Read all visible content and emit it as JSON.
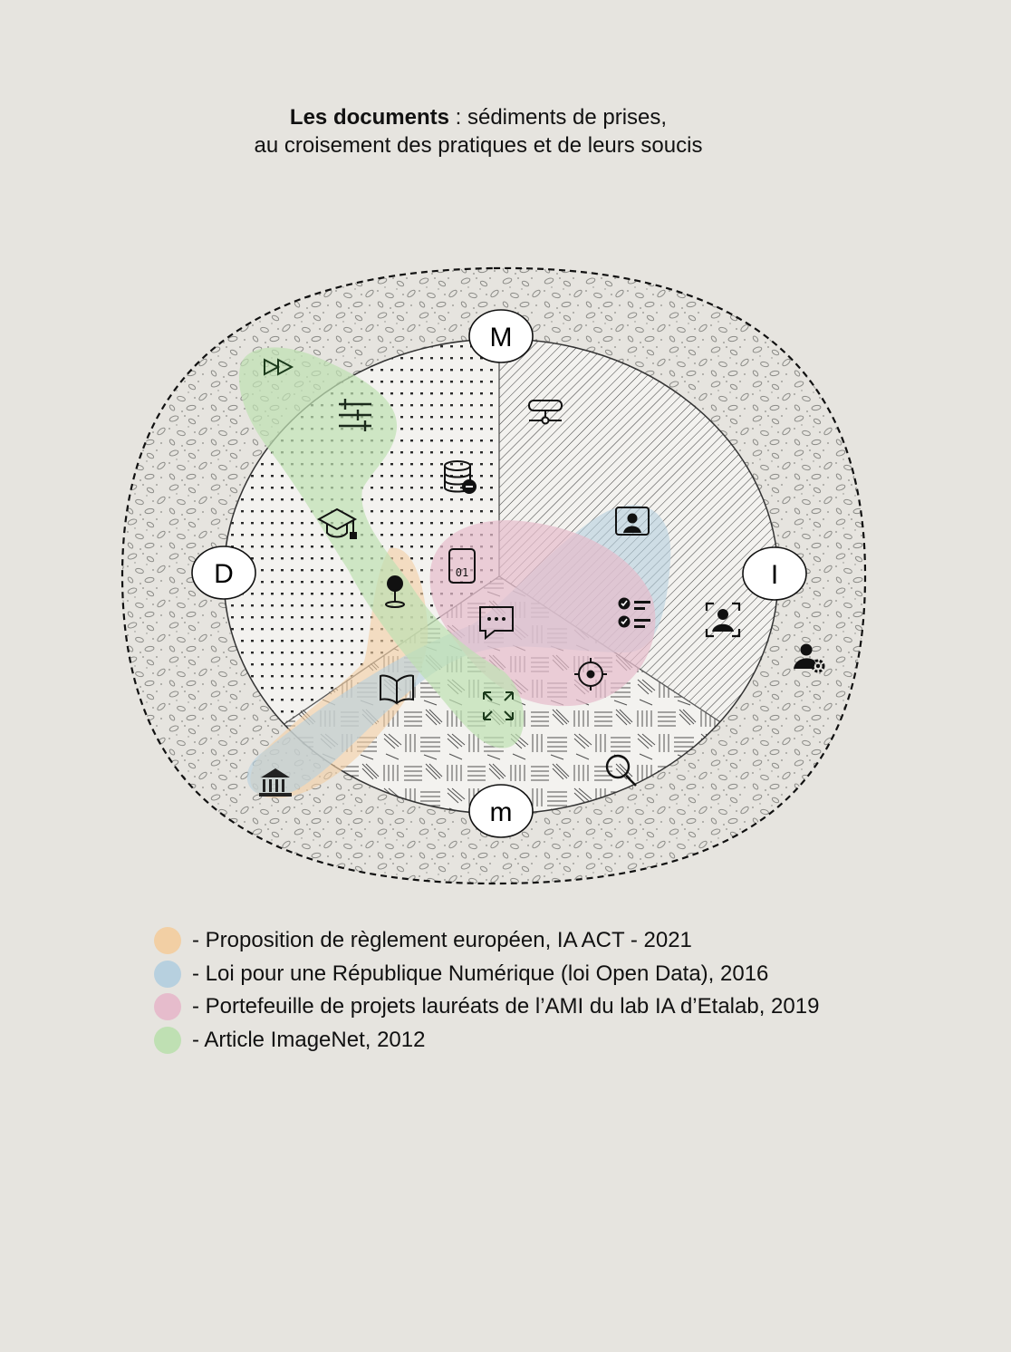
{
  "title": {
    "bold": "Les documents",
    "rest": " : sédiments de prises,",
    "line2": "au croisement des pratiques et de leurs soucis"
  },
  "axes": {
    "top": "M",
    "left": "D",
    "right": "I",
    "bottom": "m"
  },
  "legend": [
    {
      "label": "- Proposition de règlement européen, IA ACT - 2021",
      "color": "#f2cfa4"
    },
    {
      "label": "- Loi pour une République Numérique (loi Open Data), 2016",
      "color": "#b7d0df"
    },
    {
      "label": "- Portefeuille de projets lauréats de l’AMI du lab IA d’Etalab, 2019",
      "color": "#e6bccc"
    },
    {
      "label": "- Article ImageNet, 2012",
      "color": "#bfe0b3"
    }
  ],
  "icons": [
    "fast-forward-icon",
    "sliders-icon",
    "database-remove-icon",
    "server-icon",
    "graduation-cap-icon",
    "map-pin-icon",
    "binary-file-icon",
    "video-user-icon",
    "checklist-icon",
    "user-frame-icon",
    "user-settings-icon",
    "chat-icon",
    "target-icon",
    "book-icon",
    "expand-icon",
    "institution-icon",
    "search-icon"
  ]
}
